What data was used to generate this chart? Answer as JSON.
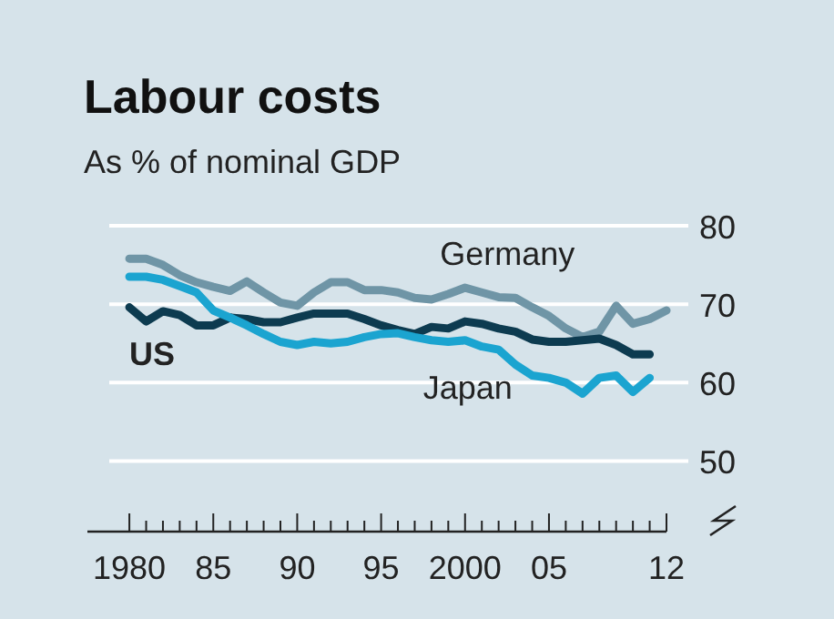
{
  "chart_data": {
    "type": "line",
    "title": "Labour costs",
    "subtitle": "As % of nominal GDP",
    "x": [
      1980,
      1981,
      1982,
      1983,
      1984,
      1985,
      1986,
      1987,
      1988,
      1989,
      1990,
      1991,
      1992,
      1993,
      1994,
      1995,
      1996,
      1997,
      1998,
      1999,
      2000,
      2001,
      2002,
      2003,
      2004,
      2005,
      2006,
      2007,
      2008,
      2009,
      2010,
      2011
    ],
    "series": [
      {
        "name": "Germany",
        "color": "#6f95a6",
        "x": [
          1980,
          1981,
          1982,
          1983,
          1984,
          1985,
          1986,
          1987,
          1988,
          1989,
          1990,
          1991,
          1992,
          1993,
          1994,
          1995,
          1996,
          1997,
          1998,
          1999,
          2000,
          2001,
          2002,
          2003,
          2004,
          2005,
          2006,
          2007,
          2008,
          2009,
          2010,
          2011,
          2012
        ],
        "values": [
          75.8,
          75.8,
          75,
          73.7,
          72.8,
          72.2,
          71.7,
          72.9,
          71.5,
          70.2,
          69.8,
          71.5,
          72.8,
          72.8,
          71.8,
          71.8,
          71.5,
          70.8,
          70.6,
          71.3,
          72.1,
          71.5,
          70.9,
          70.8,
          69.6,
          68.5,
          66.9,
          65.8,
          66.5,
          69.8,
          67.5,
          68.1,
          69.2
        ]
      },
      {
        "name": "US",
        "color": "#0d3b50",
        "values": [
          69.6,
          67.8,
          69.1,
          68.6,
          67.3,
          67.3,
          68.3,
          68.1,
          67.7,
          67.7,
          68.3,
          68.8,
          68.8,
          68.8,
          68.1,
          67.3,
          66.7,
          66.2,
          67.1,
          66.9,
          67.8,
          67.5,
          66.9,
          66.5,
          65.5,
          65.2,
          65.2,
          65.4,
          65.6,
          64.8,
          63.6,
          63.6
        ]
      },
      {
        "name": "Japan",
        "color": "#1ba4d0",
        "values": [
          73.5,
          73.5,
          73.1,
          72.3,
          71.5,
          69.2,
          68.3,
          67.3,
          66.2,
          65.2,
          64.8,
          65.2,
          65,
          65.2,
          65.8,
          66.2,
          66.3,
          65.8,
          65.4,
          65.2,
          65.4,
          64.6,
          64.2,
          62.3,
          60.9,
          60.6,
          60,
          58.6,
          60.6,
          60.9,
          58.8,
          60.6
        ]
      }
    ],
    "xlim": [
      1977.5,
      2012
    ],
    "xticks": [
      1980,
      {
        "value": 1981,
        "label": null
      },
      {
        "value": 1982,
        "label": null
      },
      {
        "value": 1983,
        "label": null
      },
      {
        "value": 1984,
        "label": null
      },
      {
        "value": 1985,
        "label": "85"
      },
      {
        "value": 1986,
        "label": null
      },
      {
        "value": 1987,
        "label": null
      },
      {
        "value": 1988,
        "label": null
      },
      {
        "value": 1989,
        "label": null
      },
      {
        "value": 1990,
        "label": "90"
      },
      {
        "value": 1991,
        "label": null
      },
      {
        "value": 1992,
        "label": null
      },
      {
        "value": 1993,
        "label": null
      },
      {
        "value": 1994,
        "label": null
      },
      {
        "value": 1995,
        "label": "95"
      },
      {
        "value": 1996,
        "label": null
      },
      {
        "value": 1997,
        "label": null
      },
      {
        "value": 1998,
        "label": null
      },
      {
        "value": 1999,
        "label": null
      },
      2000,
      {
        "value": 2001,
        "label": null
      },
      {
        "value": 2002,
        "label": null
      },
      {
        "value": 2003,
        "label": null
      },
      {
        "value": 2004,
        "label": null
      },
      {
        "value": 2005,
        "label": "05"
      },
      {
        "value": 2006,
        "label": null
      },
      {
        "value": 2007,
        "label": null
      },
      {
        "value": 2008,
        "label": null
      },
      {
        "value": 2009,
        "label": null
      },
      {
        "value": 2010,
        "label": null
      },
      {
        "value": 2011,
        "label": null
      },
      {
        "value": 2012,
        "label": "12"
      }
    ],
    "ylim": [
      41,
      80
    ],
    "yticks": [
      50,
      60,
      70,
      80
    ],
    "grid": "y",
    "line_style": "solid",
    "marker": "none"
  }
}
